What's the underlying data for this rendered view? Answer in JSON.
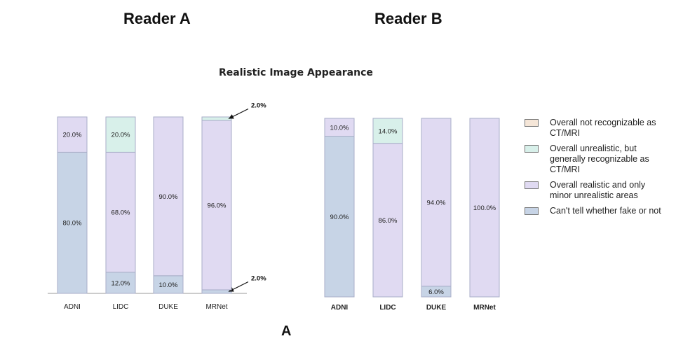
{
  "titles": {
    "reader_a": "Reader A",
    "reader_b": "Reader B",
    "subtitle": "Realistic Image Appearance",
    "panel": "A"
  },
  "legend": [
    {
      "label": "Overall not recognizable as CT/MRI",
      "color": "#f5e6d8"
    },
    {
      "label": "Overall unrealistic, but generally recognizable as CT/MRI",
      "color": "#d8f0ea"
    },
    {
      "label": "Overall realistic and only minor unrealistic areas",
      "color": "#e0daf2"
    },
    {
      "label": "Can't tell whether fake or not",
      "color": "#c7d4e6"
    }
  ],
  "chart_data": [
    {
      "type": "bar",
      "stacked": true,
      "title": "Reader A",
      "categories": [
        "ADNI",
        "LIDC",
        "DUKE",
        "MRNet"
      ],
      "series": [
        {
          "name": "Can't tell whether fake or not",
          "values": [
            80.0,
            12.0,
            10.0,
            2.0
          ],
          "labels": [
            "80.0%",
            "12.0%",
            "10.0%",
            "2.0%"
          ]
        },
        {
          "name": "Overall realistic and only minor unrealistic areas",
          "values": [
            20.0,
            68.0,
            90.0,
            96.0
          ],
          "labels": [
            "20.0%",
            "68.0%",
            "90.0%",
            "96.0%"
          ]
        },
        {
          "name": "Overall unrealistic, but generally recognizable as CT/MRI",
          "values": [
            0,
            20.0,
            0,
            2.0
          ],
          "labels": [
            "",
            "20.0%",
            "",
            "2.0%"
          ]
        },
        {
          "name": "Overall not recognizable as CT/MRI",
          "values": [
            0,
            0,
            0,
            0
          ],
          "labels": [
            "",
            "",
            "",
            ""
          ]
        }
      ],
      "ylim": [
        0,
        100
      ],
      "grid": false
    },
    {
      "type": "bar",
      "stacked": true,
      "title": "Reader B",
      "categories": [
        "ADNI",
        "LIDC",
        "DUKE",
        "MRNet"
      ],
      "series": [
        {
          "name": "Can't tell whether fake or not",
          "values": [
            90.0,
            0,
            6.0,
            0
          ],
          "labels": [
            "90.0%",
            "",
            "6.0%",
            ""
          ]
        },
        {
          "name": "Overall realistic and only minor unrealistic areas",
          "values": [
            10.0,
            86.0,
            94.0,
            100.0
          ],
          "labels": [
            "10.0%",
            "86.0%",
            "94.0%",
            "100.0%"
          ]
        },
        {
          "name": "Overall unrealistic, but generally recognizable as CT/MRI",
          "values": [
            0,
            14.0,
            0,
            0
          ],
          "labels": [
            "",
            "14.0%",
            "",
            ""
          ]
        },
        {
          "name": "Overall not recognizable as CT/MRI",
          "values": [
            0,
            0,
            0,
            0
          ],
          "labels": [
            "",
            "",
            "",
            ""
          ]
        }
      ],
      "ylim": [
        0,
        100
      ],
      "grid": false
    }
  ]
}
